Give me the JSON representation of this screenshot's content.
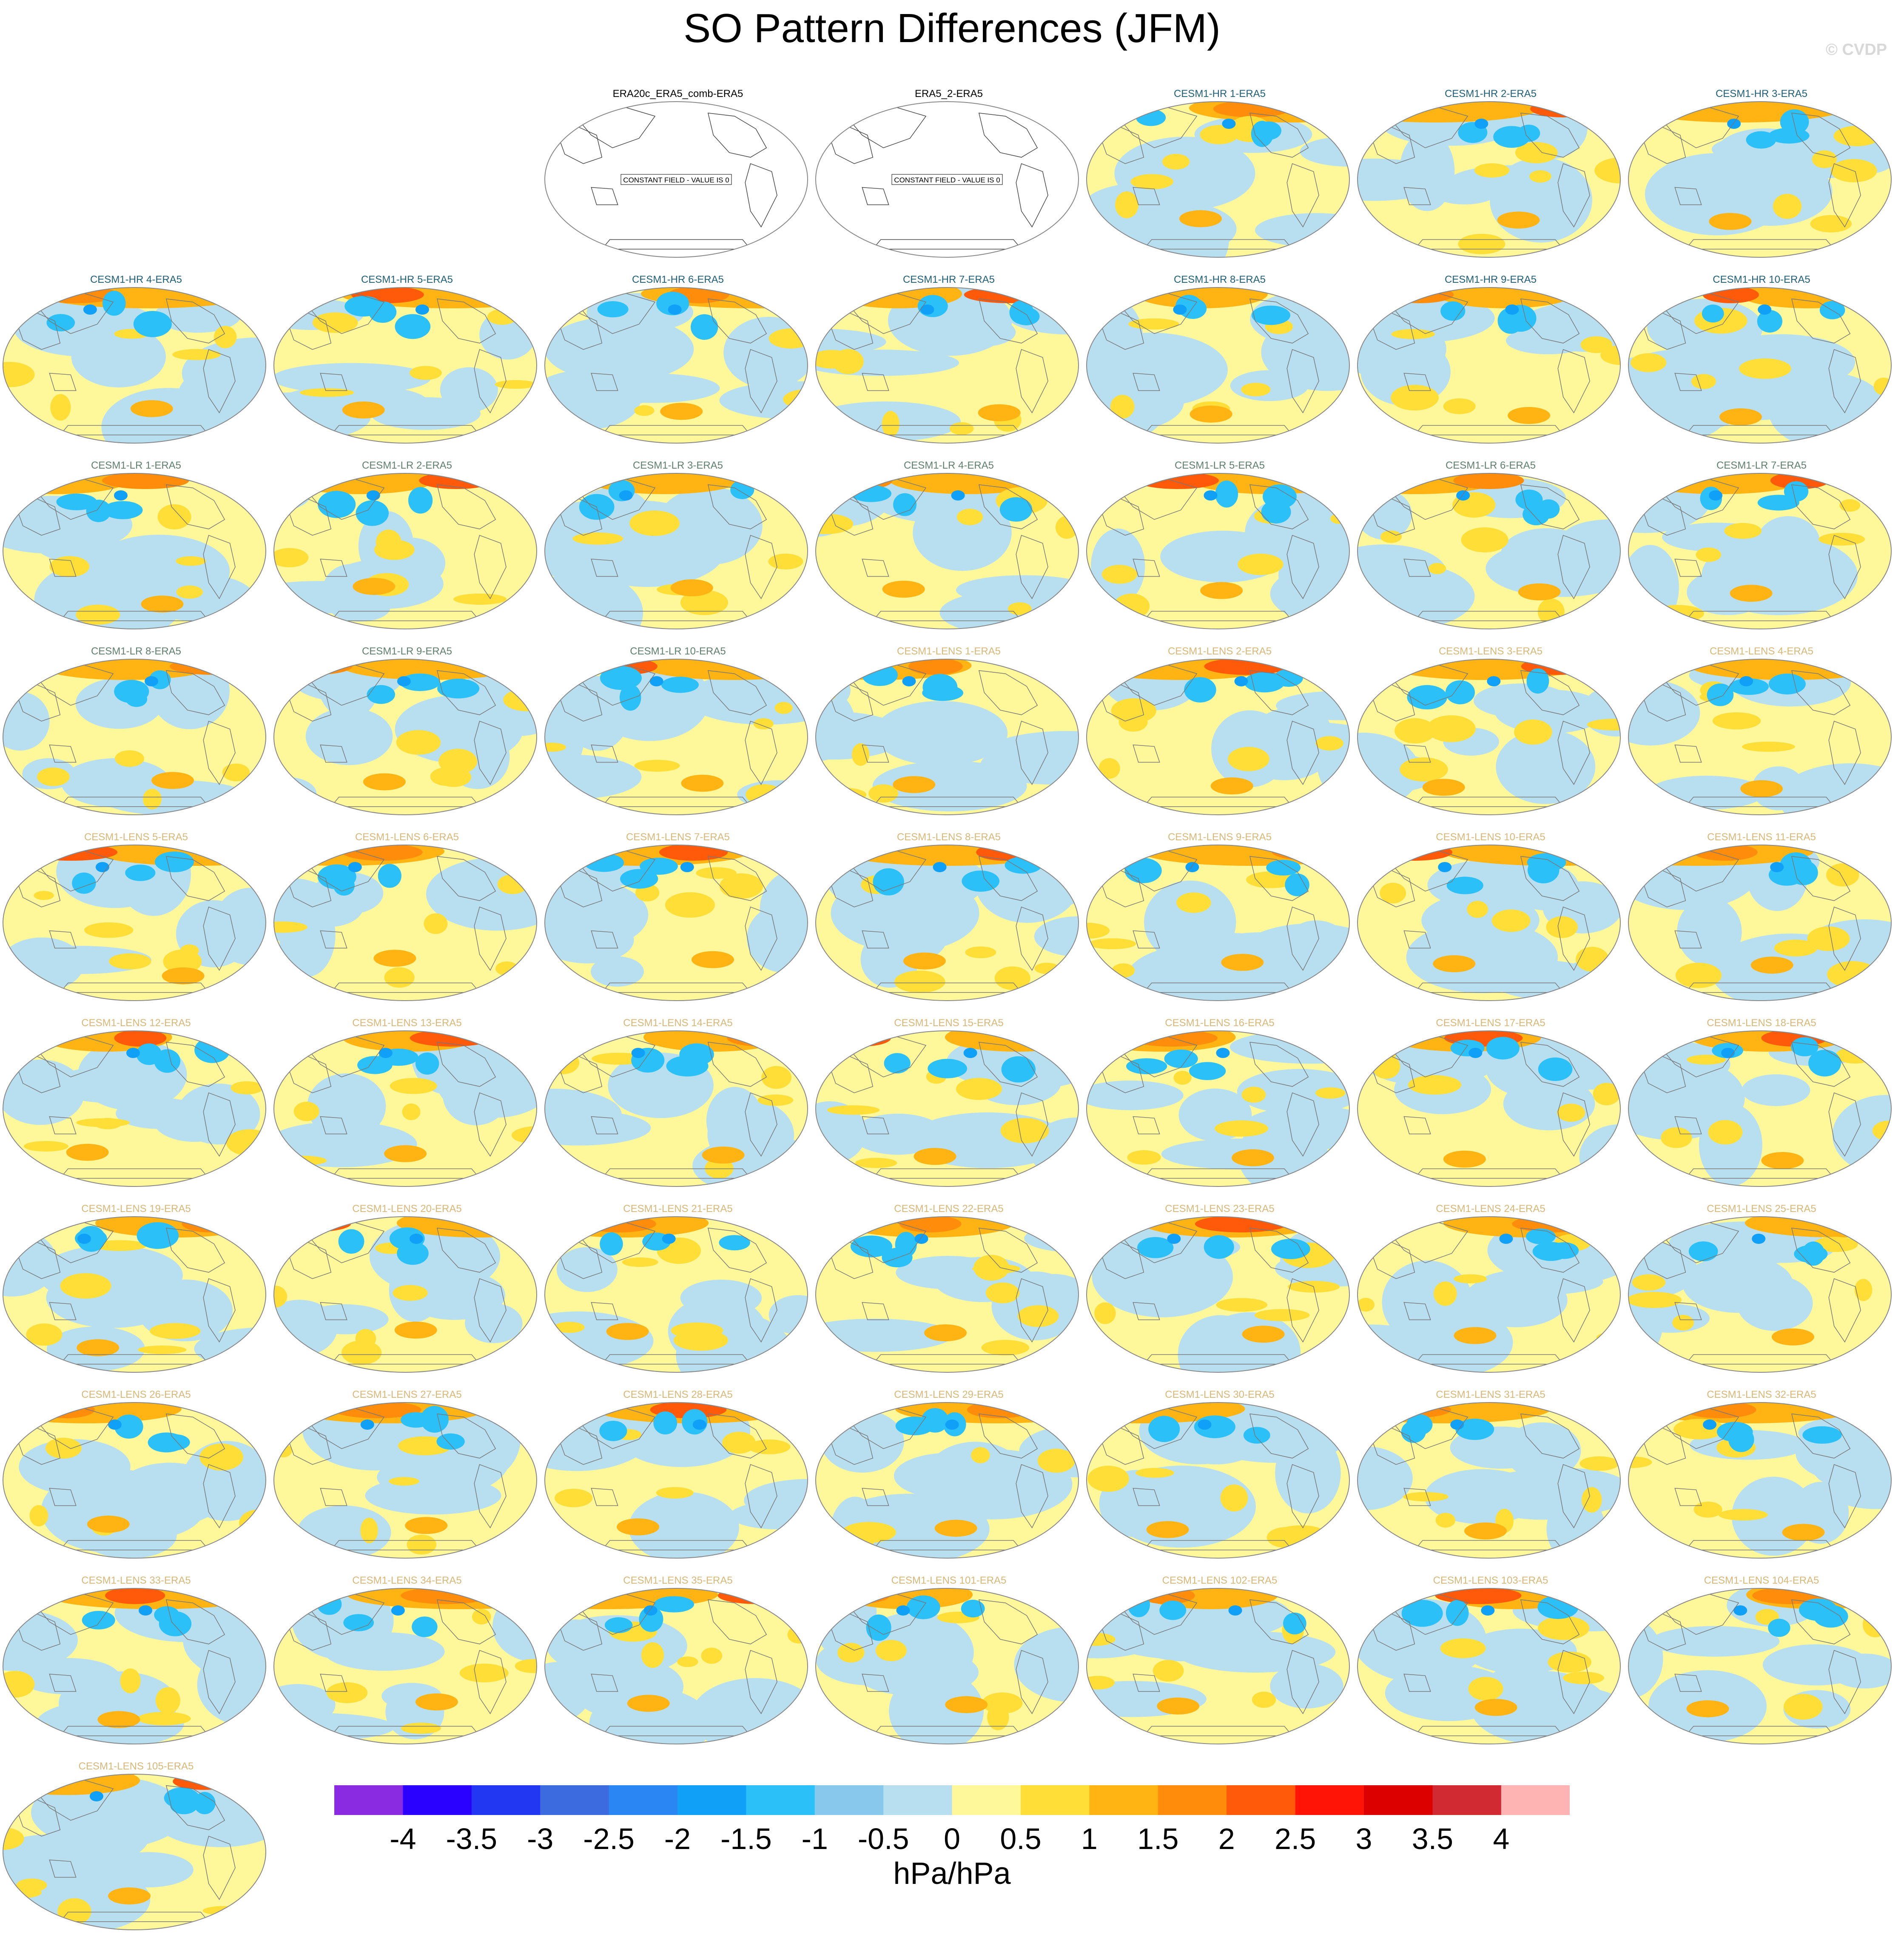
{
  "title": "SO Pattern Differences (JFM)",
  "credit": "© CVDP",
  "constant_field_label": "CONSTANT FIELD - VALUE IS 0",
  "colorbar": {
    "units": "hPa/hPa",
    "tick_labels": [
      "-4",
      "-3.5",
      "-3",
      "-2.5",
      "-2",
      "-1.5",
      "-1",
      "-0.5",
      "0",
      "0.5",
      "1",
      "1.5",
      "2",
      "2.5",
      "3",
      "3.5",
      "4"
    ],
    "colors": [
      "#8a2be2",
      "#2a00ff",
      "#2137f2",
      "#3c6adf",
      "#2a86f2",
      "#10a0f8",
      "#2cc0f8",
      "#88c8ec",
      "#b8dff0",
      "#fff89a",
      "#ffde38",
      "#ffb414",
      "#ff8c0a",
      "#ff5a0a",
      "#ff1405",
      "#dc0000",
      "#d22a32",
      "#ffb4b4"
    ]
  },
  "title_colors": {
    "obs": "#000000",
    "hr": "#1f5f77",
    "lr": "#5f7f6f",
    "lens": "#d8b878"
  },
  "panels": [
    {
      "title": "ERA20c_ERA5_comb-ERA5",
      "group": "obs",
      "constant": true
    },
    {
      "title": "ERA5_2-ERA5",
      "group": "obs",
      "constant": true
    },
    {
      "title": "CESM1-HR 1-ERA5",
      "group": "hr"
    },
    {
      "title": "CESM1-HR 2-ERA5",
      "group": "hr"
    },
    {
      "title": "CESM1-HR 3-ERA5",
      "group": "hr"
    },
    {
      "title": "CESM1-HR 4-ERA5",
      "group": "hr"
    },
    {
      "title": "CESM1-HR 5-ERA5",
      "group": "hr"
    },
    {
      "title": "CESM1-HR 6-ERA5",
      "group": "hr"
    },
    {
      "title": "CESM1-HR 7-ERA5",
      "group": "hr"
    },
    {
      "title": "CESM1-HR 8-ERA5",
      "group": "hr"
    },
    {
      "title": "CESM1-HR 9-ERA5",
      "group": "hr"
    },
    {
      "title": "CESM1-HR 10-ERA5",
      "group": "hr"
    },
    {
      "title": "CESM1-LR 1-ERA5",
      "group": "lr"
    },
    {
      "title": "CESM1-LR 2-ERA5",
      "group": "lr"
    },
    {
      "title": "CESM1-LR 3-ERA5",
      "group": "lr"
    },
    {
      "title": "CESM1-LR 4-ERA5",
      "group": "lr"
    },
    {
      "title": "CESM1-LR 5-ERA5",
      "group": "lr"
    },
    {
      "title": "CESM1-LR 6-ERA5",
      "group": "lr"
    },
    {
      "title": "CESM1-LR 7-ERA5",
      "group": "lr"
    },
    {
      "title": "CESM1-LR 8-ERA5",
      "group": "lr"
    },
    {
      "title": "CESM1-LR 9-ERA5",
      "group": "lr"
    },
    {
      "title": "CESM1-LR 10-ERA5",
      "group": "lr"
    },
    {
      "title": "CESM1-LENS 1-ERA5",
      "group": "lens"
    },
    {
      "title": "CESM1-LENS 2-ERA5",
      "group": "lens"
    },
    {
      "title": "CESM1-LENS 3-ERA5",
      "group": "lens"
    },
    {
      "title": "CESM1-LENS 4-ERA5",
      "group": "lens"
    },
    {
      "title": "CESM1-LENS 5-ERA5",
      "group": "lens"
    },
    {
      "title": "CESM1-LENS 6-ERA5",
      "group": "lens"
    },
    {
      "title": "CESM1-LENS 7-ERA5",
      "group": "lens"
    },
    {
      "title": "CESM1-LENS 8-ERA5",
      "group": "lens"
    },
    {
      "title": "CESM1-LENS 9-ERA5",
      "group": "lens"
    },
    {
      "title": "CESM1-LENS 10-ERA5",
      "group": "lens"
    },
    {
      "title": "CESM1-LENS 11-ERA5",
      "group": "lens"
    },
    {
      "title": "CESM1-LENS 12-ERA5",
      "group": "lens"
    },
    {
      "title": "CESM1-LENS 13-ERA5",
      "group": "lens"
    },
    {
      "title": "CESM1-LENS 14-ERA5",
      "group": "lens"
    },
    {
      "title": "CESM1-LENS 15-ERA5",
      "group": "lens"
    },
    {
      "title": "CESM1-LENS 16-ERA5",
      "group": "lens"
    },
    {
      "title": "CESM1-LENS 17-ERA5",
      "group": "lens"
    },
    {
      "title": "CESM1-LENS 18-ERA5",
      "group": "lens"
    },
    {
      "title": "CESM1-LENS 19-ERA5",
      "group": "lens"
    },
    {
      "title": "CESM1-LENS 20-ERA5",
      "group": "lens"
    },
    {
      "title": "CESM1-LENS 21-ERA5",
      "group": "lens"
    },
    {
      "title": "CESM1-LENS 22-ERA5",
      "group": "lens"
    },
    {
      "title": "CESM1-LENS 23-ERA5",
      "group": "lens"
    },
    {
      "title": "CESM1-LENS 24-ERA5",
      "group": "lens"
    },
    {
      "title": "CESM1-LENS 25-ERA5",
      "group": "lens"
    },
    {
      "title": "CESM1-LENS 26-ERA5",
      "group": "lens"
    },
    {
      "title": "CESM1-LENS 27-ERA5",
      "group": "lens"
    },
    {
      "title": "CESM1-LENS 28-ERA5",
      "group": "lens"
    },
    {
      "title": "CESM1-LENS 29-ERA5",
      "group": "lens"
    },
    {
      "title": "CESM1-LENS 30-ERA5",
      "group": "lens"
    },
    {
      "title": "CESM1-LENS 31-ERA5",
      "group": "lens"
    },
    {
      "title": "CESM1-LENS 32-ERA5",
      "group": "lens"
    },
    {
      "title": "CESM1-LENS 33-ERA5",
      "group": "lens"
    },
    {
      "title": "CESM1-LENS 34-ERA5",
      "group": "lens"
    },
    {
      "title": "CESM1-LENS 35-ERA5",
      "group": "lens"
    },
    {
      "title": "CESM1-LENS 101-ERA5",
      "group": "lens"
    },
    {
      "title": "CESM1-LENS 102-ERA5",
      "group": "lens"
    },
    {
      "title": "CESM1-LENS 103-ERA5",
      "group": "lens"
    },
    {
      "title": "CESM1-LENS 104-ERA5",
      "group": "lens"
    },
    {
      "title": "CESM1-LENS 105-ERA5",
      "group": "lens"
    }
  ]
}
